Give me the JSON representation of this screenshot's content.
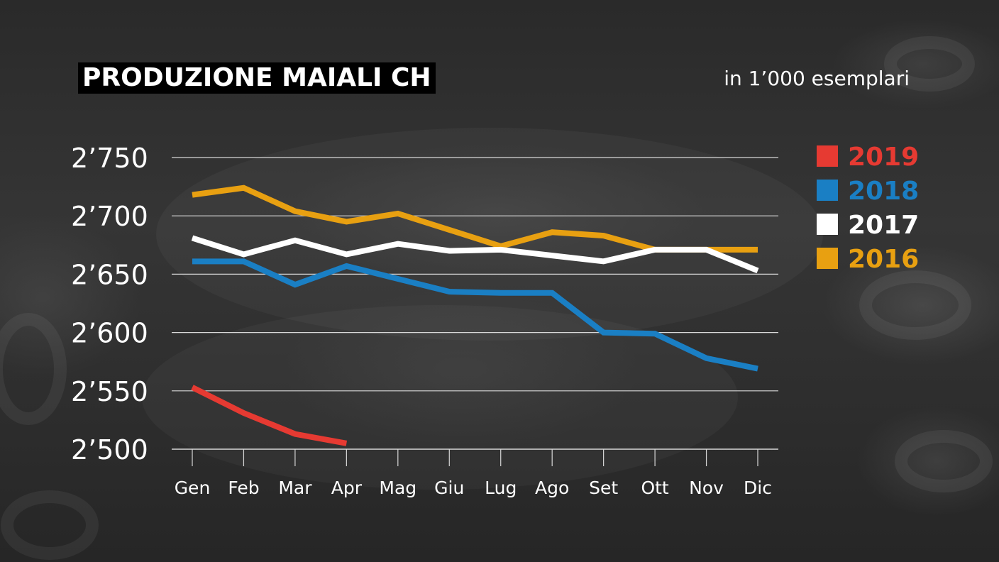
{
  "header": {
    "title": "PRODUZIONE MAIALI CH",
    "unit_note": "in 1’000 esemplari"
  },
  "chart_data": {
    "type": "line",
    "title": "PRODUZIONE MAIALI CH",
    "subtitle": "in 1’000 esemplari",
    "xlabel": "",
    "ylabel": "",
    "categories": [
      "Gen",
      "Feb",
      "Mar",
      "Apr",
      "Mag",
      "Giu",
      "Lug",
      "Ago",
      "Set",
      "Ott",
      "Nov",
      "Dic"
    ],
    "ylim": [
      2500,
      2750
    ],
    "yticks": [
      2500,
      2550,
      2600,
      2650,
      2700,
      2750
    ],
    "ytick_labels": [
      "2’500",
      "2’550",
      "2’600",
      "2’650",
      "2’700",
      "2’750"
    ],
    "grid": true,
    "legend_position": "right",
    "series": [
      {
        "name": "2016",
        "color": "#e8a011",
        "values": [
          2718,
          2724,
          2704,
          2695,
          2702,
          2688,
          2674,
          2686,
          2683,
          2671,
          2671,
          2671
        ]
      },
      {
        "name": "2017",
        "color": "#ffffff",
        "values": [
          2681,
          2667,
          2679,
          2667,
          2676,
          2670,
          2671,
          2666,
          2661,
          2671,
          2671,
          2653
        ]
      },
      {
        "name": "2018",
        "color": "#1a7fc4",
        "values": [
          2661,
          2661,
          2641,
          2657,
          2646,
          2635,
          2634,
          2634,
          2600,
          2599,
          2578,
          2569
        ]
      },
      {
        "name": "2019",
        "color": "#e63a32",
        "values": [
          2553,
          2531,
          2513,
          2505,
          null,
          null,
          null,
          null,
          null,
          null,
          null,
          null
        ]
      }
    ],
    "legend_order": [
      "2019",
      "2018",
      "2017",
      "2016"
    ]
  }
}
